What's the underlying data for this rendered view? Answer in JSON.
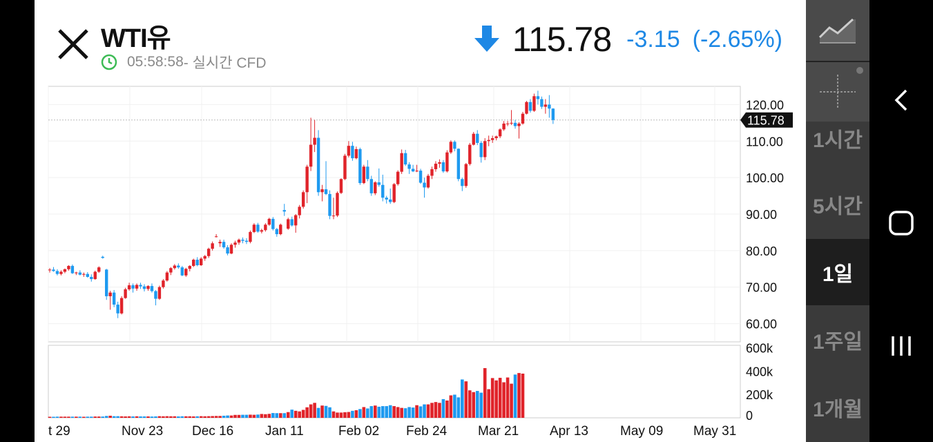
{
  "header": {
    "title": "WTI유",
    "time": "05:58:58",
    "time_suffix": " - 실시간 CFD",
    "price": "115.78",
    "change": "-3.15",
    "change_pct": "(-2.65%)"
  },
  "chart_data": {
    "type": "candlestick",
    "current_price": 115.78,
    "price_axis_labels": [
      "120.00",
      "110.00",
      "100.00",
      "90.00",
      "80.00",
      "70.00",
      "60.00"
    ],
    "price_axis_values": [
      120,
      110,
      100,
      90,
      80,
      70,
      60
    ],
    "volume_axis_labels": [
      "600k",
      "400k",
      "200k",
      "0"
    ],
    "volume_axis_values": [
      600000,
      400000,
      200000,
      0
    ],
    "x_labels": [
      "t 29",
      "Nov 23",
      "Dec 16",
      "Jan 11",
      "Feb 02",
      "Feb 24",
      "Mar 21",
      "Apr 13",
      "May 09",
      "May 31"
    ],
    "ohlc": [
      [
        74.6,
        75.2,
        74.0,
        74.8
      ],
      [
        74.8,
        75.5,
        74.2,
        74.4
      ],
      [
        74.4,
        74.9,
        73.2,
        73.6
      ],
      [
        73.6,
        74.6,
        73.2,
        74.2
      ],
      [
        74.2,
        75.1,
        73.8,
        74.9
      ],
      [
        74.9,
        76.0,
        74.5,
        75.8
      ],
      [
        75.8,
        76.2,
        73.6,
        73.8
      ],
      [
        73.8,
        74.2,
        73.3,
        74.0
      ],
      [
        74.0,
        74.6,
        73.2,
        73.4
      ],
      [
        73.4,
        74.0,
        72.8,
        73.6
      ],
      [
        73.6,
        74.1,
        72.6,
        72.8
      ],
      [
        72.8,
        73.5,
        71.5,
        72.2
      ],
      [
        72.2,
        74.5,
        72.0,
        74.2
      ],
      [
        74.2,
        75.7,
        73.9,
        75.4
      ],
      [
        78.3,
        78.6,
        77.8,
        78.0
      ],
      [
        74.8,
        75.0,
        66.5,
        67.5
      ],
      [
        67.5,
        69.0,
        63.8,
        68.5
      ],
      [
        68.5,
        69.2,
        64.5,
        65.2
      ],
      [
        65.2,
        66.0,
        61.5,
        62.8
      ],
      [
        62.8,
        67.5,
        62.5,
        67.0
      ],
      [
        67.0,
        69.8,
        66.8,
        69.4
      ],
      [
        69.4,
        71.2,
        69.0,
        70.5
      ],
      [
        70.5,
        71.0,
        68.5,
        69.6
      ],
      [
        69.6,
        71.0,
        69.0,
        70.6
      ],
      [
        70.6,
        71.2,
        69.5,
        70.2
      ],
      [
        70.2,
        70.8,
        68.8,
        69.5
      ],
      [
        69.5,
        70.5,
        69.0,
        70.3
      ],
      [
        70.3,
        71.0,
        68.5,
        68.9
      ],
      [
        68.9,
        69.2,
        65.0,
        66.8
      ],
      [
        66.8,
        70.4,
        66.5,
        70.0
      ],
      [
        70.0,
        72.2,
        69.6,
        71.8
      ],
      [
        71.8,
        74.4,
        71.5,
        74.0
      ],
      [
        74.0,
        75.5,
        73.3,
        75.2
      ],
      [
        75.2,
        76.3,
        74.8,
        75.9
      ],
      [
        75.9,
        76.5,
        75.0,
        75.4
      ],
      [
        75.4,
        75.8,
        73.0,
        73.2
      ],
      [
        73.2,
        75.3,
        72.8,
        75.0
      ],
      [
        75.0,
        76.0,
        74.3,
        75.8
      ],
      [
        75.8,
        77.8,
        75.5,
        77.5
      ],
      [
        77.5,
        78.2,
        75.7,
        76.0
      ],
      [
        76.0,
        78.2,
        75.8,
        77.8
      ],
      [
        77.8,
        78.8,
        77.2,
        78.5
      ],
      [
        78.5,
        80.8,
        78.0,
        80.5
      ],
      [
        80.5,
        82.5,
        80.0,
        82.0
      ],
      [
        83.8,
        84.5,
        83.6,
        83.9
      ],
      [
        82.0,
        83.0,
        81.0,
        82.4
      ],
      [
        82.4,
        83.0,
        80.5,
        80.9
      ],
      [
        80.9,
        81.5,
        78.7,
        79.2
      ],
      [
        79.2,
        82.0,
        79.0,
        81.6
      ],
      [
        81.6,
        82.7,
        80.8,
        82.2
      ],
      [
        82.2,
        83.3,
        81.6,
        83.0
      ],
      [
        83.0,
        83.6,
        82.0,
        82.7
      ],
      [
        82.7,
        83.4,
        81.8,
        82.4
      ],
      [
        82.4,
        85.5,
        82.0,
        85.1
      ],
      [
        85.1,
        87.5,
        84.8,
        87.1
      ],
      [
        87.1,
        87.6,
        84.9,
        85.2
      ],
      [
        85.2,
        86.0,
        84.7,
        85.6
      ],
      [
        85.6,
        87.5,
        85.2,
        87.1
      ],
      [
        87.1,
        89.0,
        86.8,
        88.7
      ],
      [
        88.7,
        89.2,
        85.5,
        85.9
      ],
      [
        85.9,
        86.2,
        83.8,
        84.5
      ],
      [
        84.5,
        87.4,
        84.2,
        87.1
      ],
      [
        91.1,
        92.8,
        89.5,
        90.7
      ],
      [
        86.0,
        89.0,
        85.7,
        88.6
      ],
      [
        88.6,
        89.3,
        86.6,
        86.9
      ],
      [
        86.9,
        90.0,
        84.9,
        89.7
      ],
      [
        89.7,
        92.5,
        88.8,
        92.0
      ],
      [
        92.0,
        96.5,
        91.5,
        96.0
      ],
      [
        96.0,
        103.5,
        93.0,
        103.0
      ],
      [
        103.0,
        116.4,
        101.8,
        109.0
      ],
      [
        109.0,
        115.8,
        107.0,
        110.9
      ],
      [
        110.9,
        113.0,
        95.0,
        96.0
      ],
      [
        96.0,
        98.0,
        93.5,
        96.8
      ],
      [
        96.8,
        104.5,
        95.2,
        95.5
      ],
      [
        95.5,
        96.5,
        88.6,
        89.5
      ],
      [
        89.5,
        94.5,
        88.6,
        89.6
      ],
      [
        89.6,
        96.2,
        89.2,
        95.8
      ],
      [
        95.8,
        99.8,
        95.5,
        99.6
      ],
      [
        99.6,
        106.5,
        99.3,
        106.0
      ],
      [
        106.0,
        110.0,
        105.5,
        108.7
      ],
      [
        108.7,
        109.8,
        104.6,
        105.3
      ],
      [
        105.3,
        108.5,
        105.0,
        107.8
      ],
      [
        107.8,
        108.2,
        98.0,
        98.5
      ],
      [
        98.5,
        103.5,
        98.2,
        103.0
      ],
      [
        103.0,
        104.8,
        99.0,
        99.6
      ],
      [
        99.6,
        100.5,
        95.0,
        95.7
      ],
      [
        95.7,
        99.0,
        95.2,
        98.7
      ],
      [
        98.7,
        102.5,
        97.5,
        98.0
      ],
      [
        98.0,
        100.8,
        93.5,
        94.5
      ],
      [
        94.5,
        95.0,
        92.9,
        94.0
      ],
      [
        94.0,
        97.0,
        92.8,
        93.3
      ],
      [
        93.3,
        98.5,
        93.0,
        98.2
      ],
      [
        98.2,
        102.0,
        97.8,
        101.6
      ],
      [
        101.6,
        107.7,
        101.0,
        106.7
      ],
      [
        106.7,
        107.6,
        103.2,
        103.6
      ],
      [
        103.6,
        104.2,
        101.0,
        102.4
      ],
      [
        102.4,
        103.5,
        101.5,
        101.7
      ],
      [
        101.7,
        103.5,
        101.5,
        101.9
      ],
      [
        101.9,
        102.4,
        98.3,
        98.6
      ],
      [
        98.6,
        100.0,
        94.5,
        97.3
      ],
      [
        97.3,
        101.0,
        97.0,
        100.5
      ],
      [
        100.5,
        103.0,
        99.6,
        102.3
      ],
      [
        102.3,
        104.5,
        101.6,
        103.8
      ],
      [
        103.8,
        105.0,
        102.7,
        104.2
      ],
      [
        104.2,
        104.8,
        101.3,
        101.7
      ],
      [
        101.7,
        107.5,
        101.4,
        106.9
      ],
      [
        106.9,
        110.2,
        106.5,
        109.8
      ],
      [
        109.8,
        110.2,
        107.2,
        107.9
      ],
      [
        107.9,
        108.0,
        99.0,
        99.6
      ],
      [
        99.6,
        100.0,
        96.3,
        97.7
      ],
      [
        97.7,
        104.0,
        97.2,
        103.7
      ],
      [
        103.7,
        109.5,
        103.3,
        109.0
      ],
      [
        109.0,
        112.5,
        108.8,
        112.0
      ],
      [
        112.0,
        113.0,
        108.9,
        109.5
      ],
      [
        109.5,
        110.0,
        104.1,
        105.6
      ],
      [
        105.6,
        110.8,
        104.8,
        110.0
      ],
      [
        110.0,
        111.5,
        108.6,
        110.3
      ],
      [
        110.3,
        111.5,
        109.5,
        110.8
      ],
      [
        110.8,
        111.5,
        110.2,
        111.3
      ],
      [
        111.3,
        113.5,
        110.8,
        113.2
      ],
      [
        113.2,
        115.5,
        112.8,
        114.8
      ],
      [
        114.8,
        115.5,
        114.1,
        114.8
      ],
      [
        114.8,
        118.5,
        114.4,
        115.0
      ],
      [
        115.0,
        115.8,
        113.4,
        114.1
      ],
      [
        114.1,
        115.2,
        110.7,
        114.8
      ],
      [
        114.8,
        118.0,
        114.5,
        117.5
      ],
      [
        117.5,
        121.0,
        117.3,
        120.7
      ],
      [
        120.7,
        121.5,
        117.8,
        118.3
      ],
      [
        118.3,
        123.0,
        118.0,
        122.3
      ],
      [
        122.3,
        123.8,
        120.0,
        121.5
      ],
      [
        121.5,
        122.2,
        118.8,
        119.4
      ],
      [
        119.4,
        121.5,
        117.5,
        120.0
      ],
      [
        120.0,
        122.6,
        116.4,
        118.9
      ],
      [
        118.9,
        119.0,
        114.7,
        115.78
      ]
    ],
    "volume": [
      9000,
      9000,
      10000,
      10000,
      10000,
      10000,
      10000,
      10000,
      10000,
      9000,
      10000,
      10000,
      11000,
      11000,
      11000,
      16000,
      18000,
      14000,
      14000,
      13000,
      12000,
      13000,
      12000,
      13000,
      12000,
      12000,
      12000,
      11000,
      12000,
      14000,
      13000,
      14000,
      13000,
      13000,
      12000,
      13000,
      13000,
      13000,
      12000,
      13000,
      14000,
      13000,
      14000,
      15000,
      16000,
      16000,
      18000,
      20000,
      20000,
      25000,
      25000,
      26000,
      26000,
      27000,
      26000,
      28000,
      33000,
      31000,
      34000,
      41000,
      40000,
      40000,
      40000,
      49000,
      70000,
      60000,
      55000,
      68000,
      90000,
      115000,
      128000,
      85000,
      105000,
      102000,
      90000,
      55000,
      45000,
      45000,
      48000,
      50000,
      60000,
      65000,
      75000,
      92000,
      80000,
      100000,
      105000,
      95000,
      100000,
      100000,
      108000,
      100000,
      92000,
      85000,
      82000,
      92000,
      88000,
      108000,
      98000,
      115000,
      115000,
      128000,
      135000,
      128000,
      160000,
      148000,
      192000,
      198000,
      175000,
      328000,
      312000,
      235000,
      220000,
      230000,
      215000,
      425000,
      245000,
      340000,
      320000,
      342000,
      304000,
      345000,
      292000,
      370000,
      383000,
      378000,
      0,
      0,
      0,
      0,
      0,
      0,
      0,
      0
    ]
  },
  "sidebar": {
    "chart_type_icon": "line-chart-icon",
    "crosshair_icon": "crosshair-icon",
    "timeframes": [
      "1시간",
      "5시간",
      "1일",
      "1주일",
      "1개월"
    ],
    "active_timeframe": "1일"
  },
  "nav": {
    "back_icon": "back-icon",
    "home_icon": "home-icon",
    "recents_icon": "recents-icon"
  },
  "colors": {
    "up": "#e0232a",
    "down": "#1e9af0",
    "accent_blue": "#1e88e5",
    "clock_green": "#3dbb55"
  }
}
